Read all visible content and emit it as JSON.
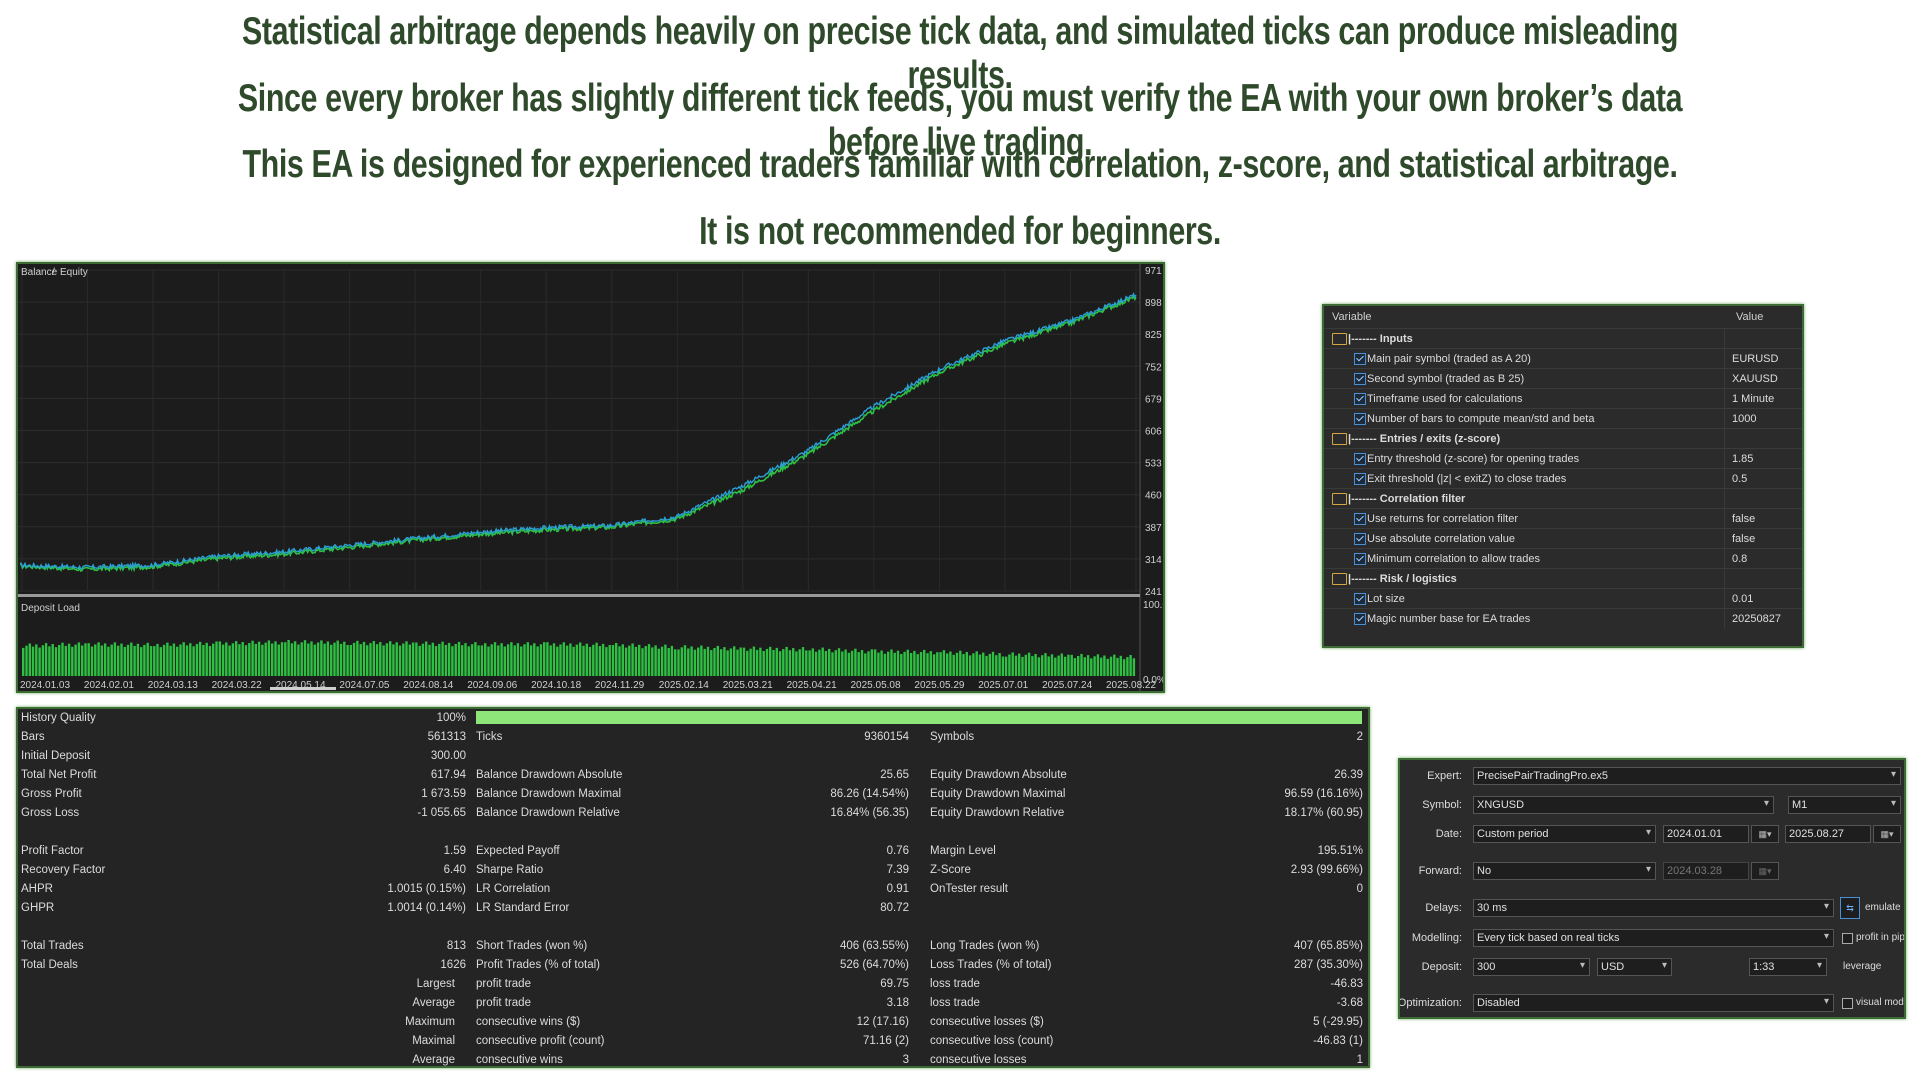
{
  "headlines": [
    "Statistical arbitrage depends heavily on precise tick data, and simulated ticks can produce misleading results.",
    "Since every broker has slightly different tick feeds, you must verify the EA with your own broker’s data before live trading.",
    "This EA is designed for experienced traders familiar with correlation, z-score, and statistical arbitrage.",
    "It is not  recommended for beginners."
  ],
  "colors": {
    "balance": "#2a9fd6",
    "equity": "#2ec043",
    "deposit_load": "#2ec043",
    "history_bar": "#8ee67a",
    "frame": "#3d6b34"
  },
  "chart_data": [
    {
      "type": "line",
      "title": "",
      "legend": [
        "Balance",
        "Equity"
      ],
      "legend_sep": "/",
      "ylim": [
        241,
        971
      ],
      "y_ticks": [
        "971",
        "898",
        "825",
        "752",
        "679",
        "606",
        "533",
        "460",
        "387",
        "314",
        "241"
      ],
      "x": [
        "2024.01.03",
        "2024.02.01",
        "2024.03.13",
        "2024.03.22",
        "2024.05.14",
        "2024.07.05",
        "2024.08.14",
        "2024.09.06",
        "2024.10.18",
        "2024.11.29",
        "2025.02.14",
        "2025.03.21",
        "2025.04.21",
        "2025.05.08",
        "2025.05.29",
        "2025.07.01",
        "2025.07.24",
        "2025.08.22"
      ],
      "series": [
        {
          "name": "Balance",
          "values": [
            300,
            295,
            300,
            320,
            330,
            345,
            360,
            375,
            385,
            390,
            410,
            480,
            560,
            660,
            745,
            810,
            855,
            915
          ]
        },
        {
          "name": "Equity",
          "values": [
            298,
            290,
            296,
            315,
            325,
            340,
            356,
            370,
            380,
            386,
            405,
            470,
            552,
            650,
            738,
            803,
            850,
            910
          ]
        }
      ]
    },
    {
      "type": "bar",
      "title": "Deposit Load",
      "ylim": [
        "0.0%",
        "100.0%"
      ],
      "x": [
        "2024.01.03",
        "2024.02.01",
        "2024.03.13",
        "2024.03.22",
        "2024.05.14",
        "2024.07.05",
        "2024.08.14",
        "2024.09.06",
        "2024.10.18",
        "2024.11.29",
        "2025.02.14",
        "2025.03.21",
        "2025.04.21",
        "2025.05.08",
        "2025.05.29",
        "2025.07.01",
        "2025.07.24",
        "2025.08.22"
      ],
      "values": [
        42,
        44,
        43,
        45,
        47,
        46,
        45,
        44,
        44,
        43,
        40,
        38,
        37,
        34,
        33,
        30,
        28,
        26
      ]
    }
  ],
  "inputs": {
    "header_variable": "Variable",
    "header_value": "Value",
    "rows": [
      {
        "group": true,
        "name": "|------- Inputs"
      },
      {
        "name": "Main pair symbol (traded as A 20)",
        "value": "EURUSD"
      },
      {
        "name": "Second symbol (traded as B 25)",
        "value": "XAUUSD"
      },
      {
        "name": "Timeframe used for calculations",
        "value": "1 Minute"
      },
      {
        "name": "Number of bars to compute mean/std and beta",
        "value": "1000"
      },
      {
        "group": true,
        "name": "|------- Entries / exits (z-score)"
      },
      {
        "name": "Entry threshold (z-score) for opening trades",
        "value": "1.85"
      },
      {
        "name": "Exit threshold (|z| < exitZ) to close trades",
        "value": "0.5"
      },
      {
        "group": true,
        "name": "|------- Correlation filter"
      },
      {
        "name": "Use returns for correlation filter",
        "value": "false"
      },
      {
        "name": "Use absolute correlation value",
        "value": "false"
      },
      {
        "name": "Minimum correlation to allow trades",
        "value": "0.8"
      },
      {
        "group": true,
        "name": "|------- Risk / logistics"
      },
      {
        "name": "Lot size",
        "value": "0.01"
      },
      {
        "name": "Magic number base for EA trades",
        "value": "20250827"
      }
    ]
  },
  "stats": {
    "history_quality_label": "History Quality",
    "history_quality_value": "100%",
    "history_quality_fill": 1.0,
    "rows": [
      {
        "c1l": "Bars",
        "c1v": "561313",
        "c2l": "Ticks",
        "c2v": "9360154",
        "c3l": "Symbols",
        "c3v": "2"
      },
      {
        "c1l": "Initial Deposit",
        "c1v": "300.00"
      },
      {
        "c1l": "Total Net Profit",
        "c1v": "617.94",
        "c2l": "Balance Drawdown Absolute",
        "c2v": "25.65",
        "c3l": "Equity Drawdown Absolute",
        "c3v": "26.39"
      },
      {
        "c1l": "Gross Profit",
        "c1v": "1 673.59",
        "c2l": "Balance Drawdown Maximal",
        "c2v": "86.26 (14.54%)",
        "c3l": "Equity Drawdown Maximal",
        "c3v": "96.59 (16.16%)"
      },
      {
        "c1l": "Gross Loss",
        "c1v": "-1 055.65",
        "c2l": "Balance Drawdown Relative",
        "c2v": "16.84% (56.35)",
        "c3l": "Equity Drawdown Relative",
        "c3v": "18.17% (60.95)"
      },
      {},
      {
        "c1l": "Profit Factor",
        "c1v": "1.59",
        "c2l": "Expected Payoff",
        "c2v": "0.76",
        "c3l": "Margin Level",
        "c3v": "195.51%"
      },
      {
        "c1l": "Recovery Factor",
        "c1v": "6.40",
        "c2l": "Sharpe Ratio",
        "c2v": "7.39",
        "c3l": "Z-Score",
        "c3v": "2.93 (99.66%)"
      },
      {
        "c1l": "AHPR",
        "c1v": "1.0015 (0.15%)",
        "c2l": "LR Correlation",
        "c2v": "0.91",
        "c3l": "OnTester result",
        "c3v": "0"
      },
      {
        "c1l": "GHPR",
        "c1v": "1.0014 (0.14%)",
        "c2l": "LR Standard Error",
        "c2v": "80.72"
      },
      {},
      {
        "c1l": "Total Trades",
        "c1v": "813",
        "c2l": "Short Trades (won %)",
        "c2v": "406 (63.55%)",
        "c3l": "Long Trades (won %)",
        "c3v": "407 (65.85%)"
      },
      {
        "c1l": "Total Deals",
        "c1v": "1626",
        "c2l": "Profit Trades (% of total)",
        "c2v": "526 (64.70%)",
        "c3l": "Loss Trades (% of total)",
        "c3v": "287 (35.30%)"
      },
      {
        "c1r": "Largest",
        "c2l": "profit trade",
        "c2v": "69.75",
        "c3l": "loss trade",
        "c3v": "-46.83"
      },
      {
        "c1r": "Average",
        "c2l": "profit trade",
        "c2v": "3.18",
        "c3l": "loss trade",
        "c3v": "-3.68"
      },
      {
        "c1r": "Maximum",
        "c2l": "consecutive wins ($)",
        "c2v": "12 (17.16)",
        "c3l": "consecutive losses ($)",
        "c3v": "5 (-29.95)"
      },
      {
        "c1r": "Maximal",
        "c2l": "consecutive profit (count)",
        "c2v": "71.16 (2)",
        "c3l": "consecutive loss (count)",
        "c3v": "-46.83 (1)"
      },
      {
        "c1r": "Average",
        "c2l": "consecutive wins",
        "c2v": "3",
        "c3l": "consecutive losses",
        "c3v": "1"
      }
    ]
  },
  "settings": {
    "expert_label": "Expert:",
    "expert_value": "PrecisePairTradingPro.ex5",
    "symbol_label": "Symbol:",
    "symbol_value": "XNGUSD",
    "timeframe_value": "M1",
    "date_label": "Date:",
    "date_mode": "Custom period",
    "date_from": "2024.01.01",
    "date_to": "2025.08.27",
    "forward_label": "Forward:",
    "forward_value": "No",
    "forward_date": "2024.03.28",
    "delays_label": "Delays:",
    "delays_value": "30 ms",
    "emulate_label": "emulate",
    "modelling_label": "Modelling:",
    "modelling_value": "Every tick based on real ticks",
    "profit_pips_label": "profit in pip",
    "deposit_label": "Deposit:",
    "deposit_value": "300",
    "currency_value": "USD",
    "leverage_value": "1:33",
    "leverage_label": "leverage",
    "optimization_label": "Optimization:",
    "optimization_value": "Disabled",
    "visual_label": "visual mode"
  }
}
